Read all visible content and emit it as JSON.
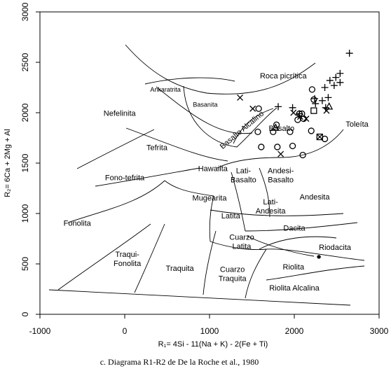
{
  "chart_data": {
    "type": "scatter",
    "xlabel": "R₁= 4Si - 11(Na + K) - 2(Fe + Ti)",
    "ylabel": "R₂= 6Ca + 2Mg + Al",
    "xlim": [
      -1000,
      3000
    ],
    "ylim": [
      0,
      3000
    ],
    "x_ticks": [
      "-1000",
      "0",
      "1000",
      "2000",
      "3000"
    ],
    "y_ticks": [
      "0",
      "500",
      "1000",
      "1500",
      "2000",
      "2500",
      "3000"
    ],
    "caption": "c. Diagrama R1-R2 de De la Roche et al., 1980",
    "fields": [
      {
        "id": "roca-picritica",
        "lines": [
          "Roca picrítica"
        ],
        "x": 1870,
        "y": 2340,
        "small": false
      },
      {
        "id": "ankaratrita",
        "lines": [
          "Ankaratrita"
        ],
        "x": 480,
        "y": 2210,
        "small": true
      },
      {
        "id": "basanita",
        "lines": [
          "Basanita"
        ],
        "x": 950,
        "y": 2060,
        "small": true
      },
      {
        "id": "nefelinita",
        "lines": [
          "Nefelinita"
        ],
        "x": -60,
        "y": 1970,
        "small": false
      },
      {
        "id": "basalto-alcalino",
        "lines": [
          "Basalto Alcalino"
        ],
        "x": 1400,
        "y": 1810,
        "small": false,
        "rotate": -40
      },
      {
        "id": "toleita",
        "lines": [
          "Toleíta"
        ],
        "x": 2740,
        "y": 1860,
        "small": false
      },
      {
        "id": "basalto",
        "lines": [
          "Basalto"
        ],
        "x": 1850,
        "y": 1820,
        "small": false
      },
      {
        "id": "tefrita",
        "lines": [
          "Tefrita"
        ],
        "x": 380,
        "y": 1630,
        "small": false
      },
      {
        "id": "hawaiita",
        "lines": [
          "Hawaiita"
        ],
        "x": 1040,
        "y": 1420,
        "small": false
      },
      {
        "id": "lati-basalto",
        "lines": [
          "Lati-",
          "Basalto"
        ],
        "x": 1400,
        "y": 1400,
        "small": false
      },
      {
        "id": "andesi-basalto",
        "lines": [
          "Andesi-",
          "Basalto"
        ],
        "x": 1840,
        "y": 1400,
        "small": false
      },
      {
        "id": "fono-tefrita",
        "lines": [
          "Fono-tefrita"
        ],
        "x": 0,
        "y": 1330,
        "small": false
      },
      {
        "id": "mugearita",
        "lines": [
          "Mugearita"
        ],
        "x": 1000,
        "y": 1130,
        "small": false
      },
      {
        "id": "andesita",
        "lines": [
          "Andesita"
        ],
        "x": 2240,
        "y": 1140,
        "small": false
      },
      {
        "id": "lati-andesita",
        "lines": [
          "Lati-",
          "Andesita"
        ],
        "x": 1720,
        "y": 1090,
        "small": false
      },
      {
        "id": "latita",
        "lines": [
          "Latita"
        ],
        "x": 1250,
        "y": 950,
        "small": false
      },
      {
        "id": "fonolita",
        "lines": [
          "Fonolita"
        ],
        "x": -560,
        "y": 880,
        "small": false
      },
      {
        "id": "dacita",
        "lines": [
          "Dacita"
        ],
        "x": 2000,
        "y": 830,
        "small": false
      },
      {
        "id": "cuarzo-latita",
        "lines": [
          "Cuarzo",
          "Latita"
        ],
        "x": 1380,
        "y": 740,
        "small": false
      },
      {
        "id": "riodacita",
        "lines": [
          "Riodacita"
        ],
        "x": 2480,
        "y": 640,
        "small": false
      },
      {
        "id": "traqui-fonolita",
        "lines": [
          "Traqui-",
          "Fonolita"
        ],
        "x": 30,
        "y": 570,
        "small": false
      },
      {
        "id": "traquita",
        "lines": [
          "Traquita"
        ],
        "x": 650,
        "y": 430,
        "small": false
      },
      {
        "id": "cuarzo-traquita",
        "lines": [
          "Cuarzo",
          "Traquita"
        ],
        "x": 1270,
        "y": 420,
        "small": false
      },
      {
        "id": "riolita",
        "lines": [
          "Riolita"
        ],
        "x": 1990,
        "y": 445,
        "small": false
      },
      {
        "id": "riolita-alcalina",
        "lines": [
          "Riolita  Alcalina"
        ],
        "x": 2000,
        "y": 235,
        "small": false
      }
    ],
    "series": [
      {
        "marker": "plus",
        "points": [
          [
            2650,
            2590
          ],
          [
            2540,
            2390
          ],
          [
            2490,
            2350
          ],
          [
            2420,
            2320
          ],
          [
            2540,
            2300
          ],
          [
            2470,
            2270
          ],
          [
            2360,
            2250
          ],
          [
            2400,
            2150
          ],
          [
            2240,
            2140
          ],
          [
            2330,
            2120
          ],
          [
            2250,
            2090
          ],
          [
            2370,
            2050
          ],
          [
            1980,
            2050
          ],
          [
            1810,
            2060
          ],
          [
            2060,
            1990
          ]
        ]
      },
      {
        "marker": "x",
        "points": [
          [
            1360,
            2150
          ],
          [
            1510,
            2040
          ],
          [
            1990,
            2000
          ],
          [
            2070,
            1960
          ],
          [
            2140,
            1940
          ],
          [
            2380,
            2020
          ],
          [
            1840,
            1590
          ],
          [
            2300,
            1760
          ]
        ]
      },
      {
        "marker": "circle",
        "points": [
          [
            1580,
            2040
          ],
          [
            2210,
            2230
          ],
          [
            2230,
            2130
          ],
          [
            2060,
            1990
          ],
          [
            2090,
            1990
          ],
          [
            2110,
            1940
          ],
          [
            2040,
            1930
          ],
          [
            1750,
            1810
          ],
          [
            1950,
            1810
          ],
          [
            1790,
            1880
          ],
          [
            2200,
            1820
          ],
          [
            1800,
            1660
          ],
          [
            1980,
            1670
          ],
          [
            1570,
            1810
          ],
          [
            1610,
            1660
          ],
          [
            2100,
            1580
          ],
          [
            2360,
            1740
          ]
        ]
      },
      {
        "marker": "square",
        "points": [
          [
            2230,
            2020
          ],
          [
            2300,
            1760
          ]
        ]
      },
      {
        "marker": "triangle",
        "points": [
          [
            2410,
            2060
          ],
          [
            1780,
            1850
          ]
        ]
      },
      {
        "marker": "star",
        "points": [
          [
            2290,
            570
          ]
        ]
      }
    ]
  }
}
